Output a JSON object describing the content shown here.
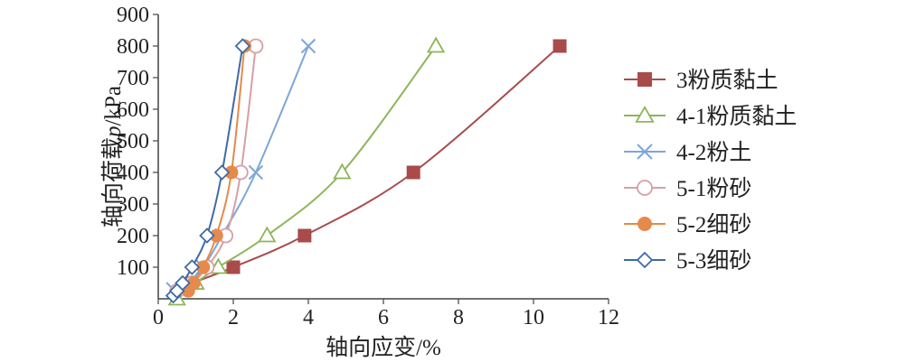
{
  "chart_data": {
    "type": "line",
    "title": "",
    "xlabel": "轴向应变/%",
    "ylabel": "轴向荷载p/kPa",
    "ylabel_prefix": "轴向荷载",
    "ylabel_var": "p",
    "ylabel_suffix": "/kPa",
    "xlim": [
      0,
      12
    ],
    "ylim": [
      0,
      900
    ],
    "xticks": [
      0,
      2,
      4,
      6,
      8,
      10,
      12
    ],
    "yticks": [
      100,
      200,
      300,
      400,
      500,
      600,
      700,
      800,
      900
    ],
    "grid": false,
    "legend_position": "right",
    "series": [
      {
        "name": "3粉质黏土",
        "marker": "square-filled",
        "color": "#a94b4b",
        "x": [
          0.9,
          2.0,
          3.9,
          6.8,
          10.7
        ],
        "y": [
          50,
          100,
          200,
          400,
          800
        ]
      },
      {
        "name": "4-1粉质黏土",
        "marker": "triangle-open",
        "color": "#8db55a",
        "x": [
          0.5,
          1.0,
          1.6,
          2.9,
          4.9,
          7.4
        ],
        "y": [
          0,
          50,
          100,
          200,
          400,
          800
        ]
      },
      {
        "name": "4-2粉土",
        "marker": "x",
        "color": "#7ea6d6",
        "x": [
          0.4,
          0.8,
          1.2,
          1.7,
          2.6,
          4.0
        ],
        "y": [
          30,
          50,
          100,
          200,
          400,
          800
        ]
      },
      {
        "name": "5-1粉砂",
        "marker": "circle-open",
        "color": "#d6a0a5",
        "x": [
          0.5,
          0.9,
          1.3,
          1.8,
          2.2,
          2.6
        ],
        "y": [
          25,
          50,
          100,
          200,
          400,
          800
        ]
      },
      {
        "name": "5-2细砂",
        "marker": "circle-filled",
        "color": "#e58a4a",
        "x": [
          0.8,
          0.95,
          1.2,
          1.55,
          1.95,
          2.3
        ],
        "y": [
          25,
          50,
          100,
          200,
          400,
          800
        ]
      },
      {
        "name": "5-3细砂",
        "marker": "diamond-open",
        "color": "#3f6aa6",
        "x": [
          0.4,
          0.5,
          0.65,
          0.9,
          1.3,
          1.7,
          2.25
        ],
        "y": [
          10,
          25,
          50,
          100,
          200,
          400,
          800
        ]
      }
    ]
  }
}
